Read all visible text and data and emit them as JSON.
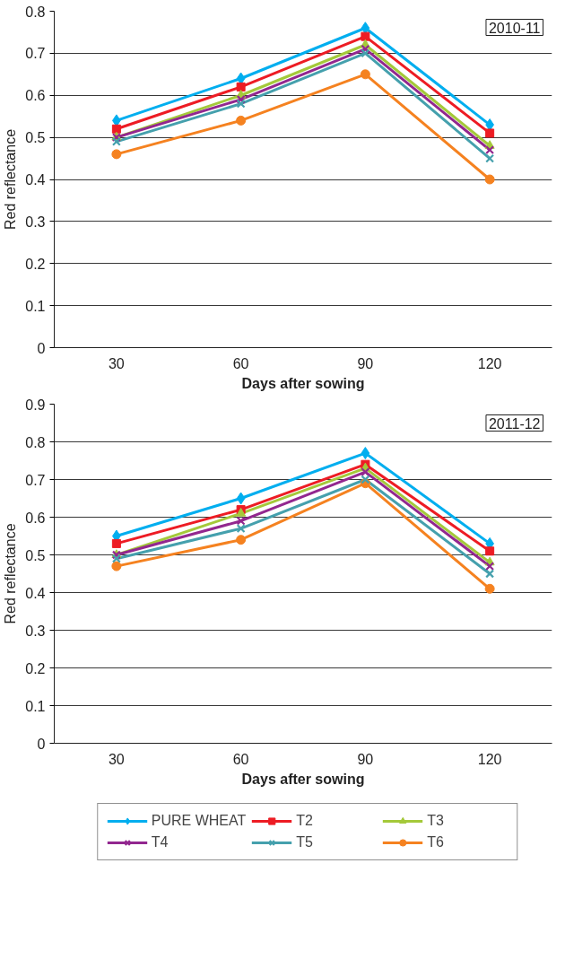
{
  "chart_data": [
    {
      "type": "line",
      "xlabel": "Days after sowing",
      "ylabel": "Red reflectance",
      "annotations": [
        "2010-11"
      ],
      "categories": [
        "30",
        "60",
        "90",
        "120"
      ],
      "ylim": [
        0,
        0.8
      ],
      "yticks": [
        0,
        0.1,
        0.2,
        0.3,
        0.4,
        0.5,
        0.6,
        0.7,
        0.8
      ],
      "grid": "y",
      "legend": false,
      "series": [
        {
          "color": "#00aeef",
          "marker": "diamond",
          "values": [
            0.54,
            0.64,
            0.76,
            0.53
          ]
        },
        {
          "color": "#ed1c24",
          "marker": "square",
          "values": [
            0.52,
            0.62,
            0.74,
            0.51
          ]
        },
        {
          "color": "#a4c93a",
          "marker": "triangle",
          "values": [
            0.5,
            0.6,
            0.72,
            0.48
          ]
        },
        {
          "color": "#92278f",
          "marker": "cross",
          "values": [
            0.5,
            0.59,
            0.71,
            0.47
          ]
        },
        {
          "color": "#45a0ad",
          "marker": "cross",
          "values": [
            0.49,
            0.58,
            0.7,
            0.45
          ]
        },
        {
          "color": "#f58220",
          "marker": "circle",
          "values": [
            0.46,
            0.54,
            0.65,
            0.4
          ]
        }
      ]
    },
    {
      "type": "line",
      "xlabel": "Days after sowing",
      "ylabel": "Red reflectance",
      "annotations": [
        "2011-12"
      ],
      "categories": [
        "30",
        "60",
        "90",
        "120"
      ],
      "ylim": [
        0,
        0.9
      ],
      "yticks": [
        0,
        0.1,
        0.2,
        0.3,
        0.4,
        0.5,
        0.6,
        0.7,
        0.8,
        0.9
      ],
      "grid": "y",
      "legend": "bottom",
      "series": [
        {
          "name": "PURE WHEAT",
          "color": "#00aeef",
          "marker": "diamond",
          "values": [
            0.55,
            0.65,
            0.77,
            0.53
          ]
        },
        {
          "name": "T2",
          "color": "#ed1c24",
          "marker": "square",
          "values": [
            0.53,
            0.62,
            0.74,
            0.51
          ]
        },
        {
          "name": "T3",
          "color": "#a4c93a",
          "marker": "triangle",
          "values": [
            0.5,
            0.61,
            0.73,
            0.48
          ]
        },
        {
          "name": "T4",
          "color": "#92278f",
          "marker": "cross",
          "values": [
            0.5,
            0.59,
            0.72,
            0.47
          ]
        },
        {
          "name": "T5",
          "color": "#45a0ad",
          "marker": "cross",
          "values": [
            0.49,
            0.57,
            0.7,
            0.45
          ]
        },
        {
          "name": "T6",
          "color": "#f58220",
          "marker": "circle",
          "values": [
            0.47,
            0.54,
            0.69,
            0.41
          ]
        }
      ]
    }
  ]
}
